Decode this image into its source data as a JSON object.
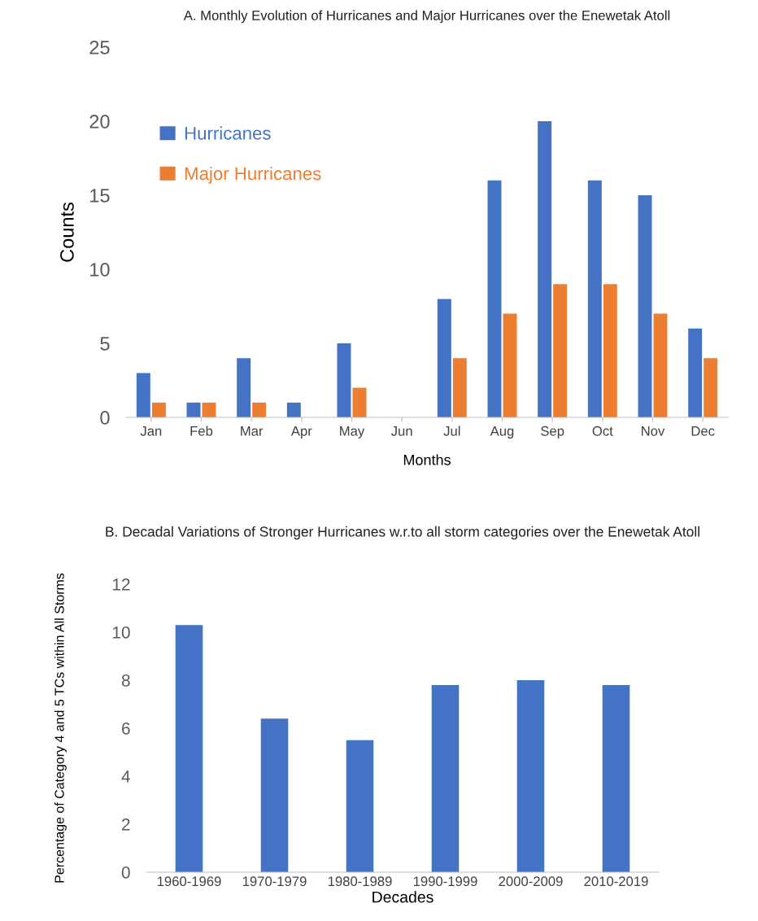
{
  "chart_data": [
    {
      "type": "bar",
      "title": "A. Monthly Evolution of Hurricanes and Major Hurricanes over the Enewetak Atoll",
      "xlabel": "Months",
      "ylabel": "Counts",
      "categories": [
        "Jan",
        "Feb",
        "Mar",
        "Apr",
        "May",
        "Jun",
        "Jul",
        "Aug",
        "Sep",
        "Oct",
        "Nov",
        "Dec"
      ],
      "series": [
        {
          "name": "Hurricanes",
          "color": "#4472c4",
          "values": [
            3,
            1,
            4,
            1,
            5,
            0,
            8,
            16,
            20,
            16,
            15,
            6
          ]
        },
        {
          "name": "Major Hurricanes",
          "color": "#ed7d31",
          "values": [
            1,
            1,
            1,
            0,
            2,
            0,
            4,
            7,
            9,
            9,
            7,
            4
          ]
        }
      ],
      "ylim": [
        0,
        25
      ],
      "yticks": [
        0,
        5,
        10,
        15,
        20,
        25
      ],
      "grid": false,
      "legend": "top left"
    },
    {
      "type": "bar",
      "title": "B. Decadal Variations of Stronger Hurricanes w.r.to all storm categories over the Enewetak Atoll",
      "xlabel": "Decades",
      "ylabel": "Percentage of Category 4 and 5 TCs within All Storms",
      "categories": [
        "1960-1969",
        "1970-1979",
        "1980-1989",
        "1990-1999",
        "2000-2009",
        "2010-2019"
      ],
      "series": [
        {
          "color": "#4472c4",
          "values": [
            10.3,
            6.4,
            5.5,
            7.8,
            8.0,
            7.8
          ]
        }
      ],
      "ylim": [
        0,
        12
      ],
      "yticks": [
        0,
        2,
        4,
        6,
        8,
        10,
        12
      ],
      "grid": false
    }
  ]
}
